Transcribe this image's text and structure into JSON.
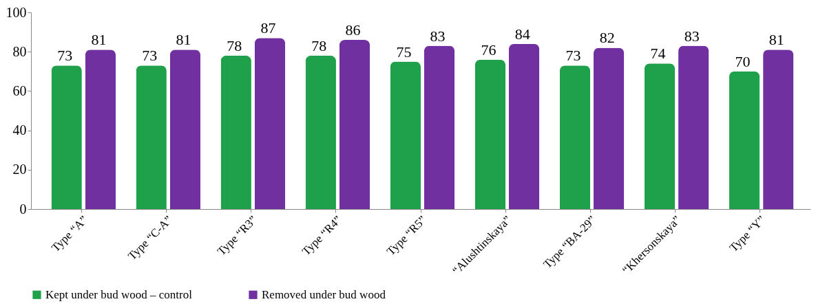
{
  "chart_data": {
    "type": "bar",
    "categories": [
      "Type “A”",
      "Type “C-A”",
      "Type “R3”",
      "Type “R4”",
      "Type “R5”",
      "“Alushtinskaya”",
      "Type “BA-29”",
      "“Khersonskaya”",
      "Type “Y”"
    ],
    "series": [
      {
        "name": "Kept under bud wood – control",
        "color": "#1fa04a",
        "values": [
          73,
          73,
          78,
          78,
          75,
          76,
          73,
          74,
          70
        ]
      },
      {
        "name": "Removed under bud wood",
        "color": "#7030a0",
        "values": [
          81,
          81,
          87,
          86,
          83,
          84,
          82,
          83,
          81
        ]
      }
    ],
    "ylim": [
      0,
      100
    ],
    "yticks": [
      0,
      20,
      40,
      60,
      80,
      100
    ],
    "grid": false,
    "legend": "bottom",
    "data_labels": true
  }
}
